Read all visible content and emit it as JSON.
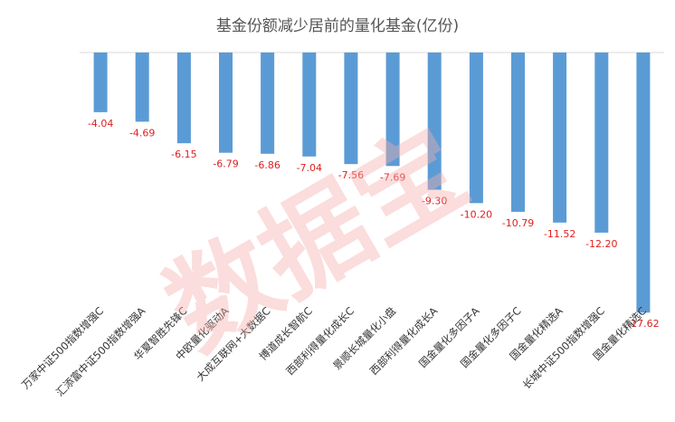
{
  "chart_data": {
    "type": "bar",
    "title": "基金份额减少居前的量化基金(亿份)",
    "categories": [
      "万家中证500指数增强C",
      "汇添富中证500指数增强A",
      "华夏智胜先锋C",
      "中欧量化驱动A",
      "大成互联网+大数据C",
      "博道成长智航C",
      "西部利得量化成长C",
      "景顺长城量化小盘",
      "西部利得量化成长A",
      "国金量化多因子A",
      "国金量化多因子C",
      "国金量化精选A",
      "长城中证500指数增强C",
      "国金量化精选C"
    ],
    "values": [
      -4.04,
      -4.69,
      -6.15,
      -6.79,
      -6.86,
      -7.04,
      -7.56,
      -7.69,
      -9.3,
      -10.2,
      -10.79,
      -11.52,
      -12.2,
      -17.62
    ],
    "data_labels": [
      "-4.04",
      "-4.69",
      "-6.15",
      "-6.79",
      "-6.86",
      "-7.04",
      "-7.56",
      "-7.69",
      "-9.30",
      "-10.20",
      "-10.79",
      "-11.52",
      "-12.20",
      "-17.62"
    ],
    "ylim": [
      -18,
      0
    ],
    "grid": false,
    "colors": {
      "bar": "#5b9bd5",
      "data_label": "#e01e1e"
    }
  },
  "watermark": "数据宝"
}
